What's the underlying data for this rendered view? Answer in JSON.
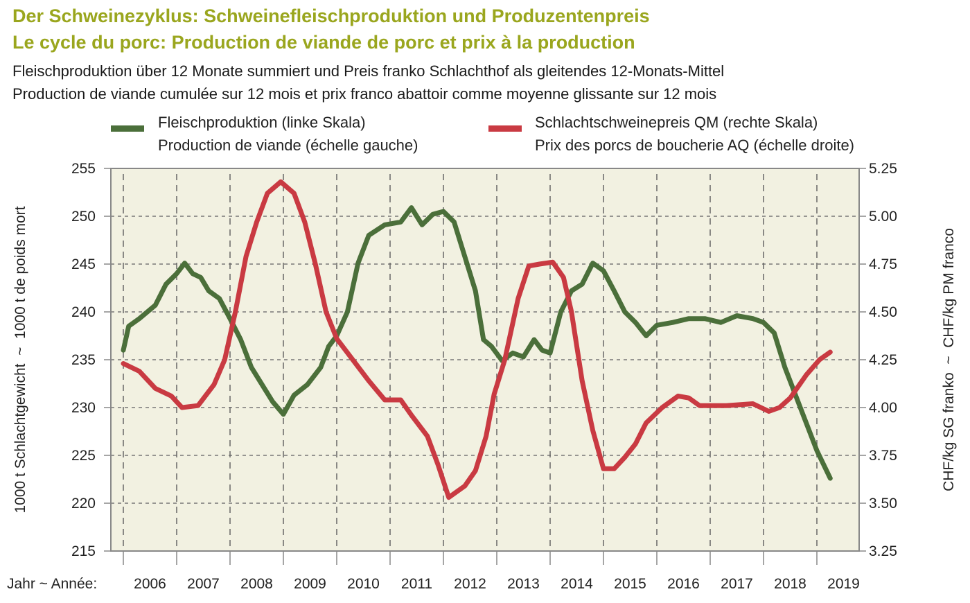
{
  "header": {
    "title_de": "Der Schweinezyklus: Schweinefleischproduktion und Produzentenpreis",
    "title_fr": "Le cycle du porc: Production de viande de porc et prix à la production",
    "subtitle_de": "Fleischproduktion über 12 Monate summiert und Preis franko Schlachthof als gleitendes 12-Monats-Mittel",
    "subtitle_fr": "Production de viande cumulée sur 12 mois et prix franco abattoir comme moyenne glissante sur 12 mois"
  },
  "legend": {
    "production_de": "Fleischproduktion (linke Skala)",
    "production_fr": "Production de viande (échelle gauche)",
    "price_de": "Schlachtschweinepreis QM (rechte Skala)",
    "price_fr": "Prix des porcs de boucherie AQ (échelle droite)"
  },
  "chart_data": {
    "type": "line",
    "title": "Der Schweinezyklus: Schweinefleischproduktion und Produzentenpreis",
    "xlabel": "Jahr ~ Année:",
    "ylabel_left": "1000 t Schlachtgewicht  ~  1000 t de poids mort",
    "ylabel_right": "CHF/kg SG franko  ~  CHF/kg PM franco",
    "xlim": [
      2006,
      2019.99
    ],
    "ylim_left": [
      215,
      255
    ],
    "ylim_right": [
      3.25,
      5.25
    ],
    "yticks_left": [
      "215",
      "220",
      "225",
      "230",
      "235",
      "240",
      "245",
      "250",
      "255"
    ],
    "yticks_right": [
      "3.25",
      "3.50",
      "3.75",
      "4.00",
      "4.25",
      "4.50",
      "4.75",
      "5.00",
      "5.25"
    ],
    "xtick_labels": [
      "2006",
      "2007",
      "2008",
      "2009",
      "2010",
      "2011",
      "2012",
      "2013",
      "2014",
      "2015",
      "2016",
      "2017",
      "2018",
      "2019"
    ],
    "grid": true,
    "legend_position": "top",
    "colors": {
      "production": "#4b6f3a",
      "price": "#c93a42",
      "plot_bg": "#f2f1e1",
      "title": "#9aa61e"
    },
    "series": [
      {
        "name": "Fleischproduktion (linke Skala)",
        "axis": "left",
        "x": [
          2006.0,
          2006.1,
          2006.3,
          2006.6,
          2006.8,
          2007.0,
          2007.15,
          2007.3,
          2007.45,
          2007.6,
          2007.8,
          2008.0,
          2008.2,
          2008.4,
          2008.6,
          2008.8,
          2009.0,
          2009.2,
          2009.45,
          2009.7,
          2009.85,
          2010.0,
          2010.2,
          2010.4,
          2010.6,
          2010.9,
          2011.2,
          2011.4,
          2011.6,
          2011.8,
          2012.0,
          2012.2,
          2012.4,
          2012.6,
          2012.75,
          2012.9,
          2013.1,
          2013.3,
          2013.5,
          2013.7,
          2013.85,
          2014.0,
          2014.2,
          2014.4,
          2014.6,
          2014.8,
          2015.0,
          2015.2,
          2015.4,
          2015.6,
          2015.8,
          2016.0,
          2016.3,
          2016.6,
          2016.9,
          2017.2,
          2017.5,
          2017.8,
          2018.0,
          2018.2,
          2018.4,
          2018.6,
          2018.8,
          2019.0,
          2019.25
        ],
        "values": [
          236.0,
          238.5,
          239.3,
          240.7,
          242.9,
          244.0,
          245.1,
          244.0,
          243.6,
          242.2,
          241.4,
          239.3,
          237.1,
          234.2,
          232.4,
          230.6,
          229.3,
          231.3,
          232.4,
          234.2,
          236.4,
          237.5,
          240.0,
          245.1,
          248.0,
          249.1,
          249.4,
          250.9,
          249.1,
          250.2,
          250.5,
          249.4,
          245.8,
          242.2,
          237.1,
          236.4,
          234.9,
          235.7,
          235.3,
          237.1,
          236.0,
          235.7,
          240.0,
          242.2,
          242.9,
          245.1,
          244.3,
          242.2,
          240.0,
          238.9,
          237.5,
          238.6,
          238.9,
          239.3,
          239.3,
          238.9,
          239.6,
          239.3,
          238.9,
          237.8,
          234.2,
          231.3,
          228.4,
          225.5,
          222.6
        ]
      },
      {
        "name": "Schlachtschweinepreis QM (rechte Skala)",
        "axis": "right",
        "x": [
          2006.0,
          2006.3,
          2006.6,
          2006.9,
          2007.1,
          2007.4,
          2007.7,
          2007.9,
          2008.1,
          2008.3,
          2008.5,
          2008.7,
          2008.95,
          2009.2,
          2009.4,
          2009.6,
          2009.8,
          2010.0,
          2010.3,
          2010.6,
          2010.9,
          2011.2,
          2011.4,
          2011.7,
          2011.9,
          2012.1,
          2012.4,
          2012.6,
          2012.8,
          2012.95,
          2013.15,
          2013.4,
          2013.6,
          2013.8,
          2014.05,
          2014.25,
          2014.4,
          2014.6,
          2014.8,
          2015.0,
          2015.2,
          2015.4,
          2015.6,
          2015.8,
          2016.1,
          2016.4,
          2016.6,
          2016.8,
          2017.3,
          2017.8,
          2018.1,
          2018.3,
          2018.5,
          2018.8,
          2019.05,
          2019.25
        ],
        "values": [
          4.23,
          4.19,
          4.1,
          4.06,
          4.0,
          4.01,
          4.12,
          4.25,
          4.5,
          4.79,
          4.97,
          5.12,
          5.18,
          5.12,
          4.97,
          4.75,
          4.5,
          4.36,
          4.25,
          4.14,
          4.04,
          4.04,
          3.96,
          3.85,
          3.7,
          3.53,
          3.59,
          3.67,
          3.85,
          4.07,
          4.25,
          4.57,
          4.74,
          4.75,
          4.76,
          4.68,
          4.5,
          4.14,
          3.88,
          3.68,
          3.68,
          3.74,
          3.81,
          3.92,
          4.0,
          4.06,
          4.05,
          4.01,
          4.01,
          4.02,
          3.98,
          4.0,
          4.05,
          4.17,
          4.25,
          4.29
        ]
      }
    ]
  }
}
